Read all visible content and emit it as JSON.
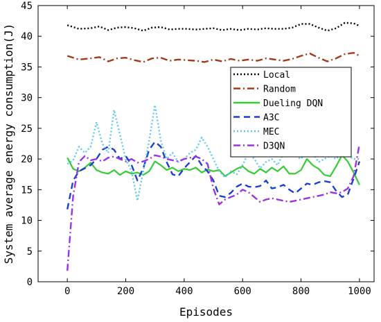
{
  "chart_data": {
    "type": "line",
    "xlabel": "Episodes",
    "ylabel": "System average energy consumption(J)",
    "xlim": [
      -100,
      1050
    ],
    "ylim": [
      0,
      45
    ],
    "xticks": [
      0,
      200,
      400,
      600,
      800,
      1000
    ],
    "yticks": [
      0,
      5,
      10,
      15,
      20,
      25,
      30,
      35,
      40,
      45
    ],
    "grid": false,
    "legend_position": "upper-right",
    "series": [
      {
        "name": "Local",
        "color": "#000000",
        "style": "dotted",
        "x": [
          0,
          40,
          80,
          110,
          140,
          170,
          200,
          230,
          260,
          290,
          320,
          350,
          380,
          410,
          440,
          470,
          500,
          530,
          560,
          590,
          620,
          650,
          680,
          710,
          740,
          770,
          800,
          830,
          860,
          890,
          920,
          950,
          980,
          1000
        ],
        "y": [
          41.8,
          41.2,
          41.3,
          41.6,
          41.0,
          41.4,
          41.5,
          41.3,
          40.9,
          41.4,
          41.5,
          41.1,
          41.2,
          41.2,
          41.1,
          41.2,
          41.3,
          41.0,
          41.2,
          41.0,
          41.2,
          41.1,
          41.3,
          41.2,
          41.2,
          41.4,
          42.0,
          42.0,
          41.4,
          40.9,
          41.3,
          42.2,
          42.1,
          41.7
        ]
      },
      {
        "name": "Random",
        "color": "#a23a1a",
        "style": "dashdot",
        "x": [
          0,
          40,
          80,
          110,
          140,
          170,
          200,
          230,
          260,
          290,
          320,
          350,
          380,
          410,
          440,
          470,
          500,
          530,
          560,
          590,
          620,
          650,
          680,
          710,
          740,
          770,
          800,
          830,
          860,
          890,
          920,
          950,
          980,
          1000
        ],
        "y": [
          36.8,
          36.2,
          36.4,
          36.6,
          35.9,
          36.4,
          36.5,
          36.1,
          35.8,
          36.4,
          36.5,
          36.0,
          36.2,
          36.1,
          36.0,
          35.8,
          36.2,
          35.9,
          36.3,
          36.0,
          36.2,
          36.0,
          36.4,
          36.2,
          36.0,
          36.3,
          36.8,
          37.2,
          36.5,
          35.9,
          36.4,
          37.1,
          37.3,
          36.8
        ]
      },
      {
        "name": "Dueling DQN",
        "color": "#33cc33",
        "style": "solid",
        "x": [
          0,
          20,
          40,
          60,
          80,
          100,
          120,
          140,
          160,
          180,
          200,
          220,
          240,
          260,
          280,
          300,
          320,
          340,
          360,
          380,
          400,
          420,
          440,
          460,
          480,
          500,
          520,
          540,
          560,
          580,
          600,
          620,
          640,
          660,
          680,
          700,
          720,
          740,
          760,
          780,
          800,
          820,
          840,
          860,
          880,
          900,
          920,
          940,
          960,
          980,
          1000
        ],
        "y": [
          20.2,
          18.4,
          18.0,
          18.6,
          19.4,
          18.2,
          17.8,
          17.6,
          18.2,
          17.4,
          18.0,
          17.6,
          17.8,
          17.4,
          18.0,
          19.6,
          19.0,
          18.2,
          18.6,
          18.0,
          18.4,
          18.2,
          18.6,
          17.8,
          18.3,
          18.0,
          18.2,
          17.2,
          17.8,
          18.4,
          18.8,
          18.0,
          17.6,
          18.4,
          17.8,
          18.6,
          18.0,
          18.8,
          17.6,
          17.6,
          18.2,
          20.0,
          19.0,
          18.4,
          17.4,
          17.2,
          18.8,
          20.6,
          19.6,
          17.8,
          15.8
        ]
      },
      {
        "name": "A3C",
        "color": "#1a3fcc",
        "style": "dashed",
        "x": [
          0,
          20,
          40,
          60,
          80,
          100,
          120,
          140,
          160,
          180,
          200,
          220,
          240,
          260,
          280,
          300,
          320,
          340,
          360,
          380,
          400,
          420,
          440,
          460,
          480,
          500,
          520,
          540,
          560,
          580,
          600,
          620,
          640,
          660,
          680,
          700,
          720,
          740,
          760,
          780,
          800,
          820,
          840,
          860,
          880,
          900,
          920,
          940,
          960,
          980,
          1000
        ],
        "y": [
          11.8,
          16.5,
          18.0,
          18.5,
          19.0,
          20.0,
          21.5,
          22.0,
          21.5,
          20.0,
          20.5,
          19.0,
          16.5,
          18.5,
          21.5,
          22.8,
          22.0,
          19.5,
          17.5,
          17.2,
          18.5,
          19.5,
          20.5,
          19.0,
          18.0,
          16.5,
          14.0,
          13.8,
          14.5,
          15.5,
          16.0,
          15.5,
          15.4,
          15.6,
          16.5,
          15.2,
          15.4,
          15.8,
          15.0,
          14.4,
          15.2,
          16.0,
          15.8,
          16.2,
          16.4,
          16.2,
          14.8,
          13.8,
          14.2,
          16.8,
          19.6
        ]
      },
      {
        "name": "MEC",
        "color": "#5cc8f0",
        "style": "dotted",
        "x": [
          0,
          20,
          40,
          60,
          80,
          100,
          120,
          140,
          160,
          180,
          200,
          220,
          240,
          260,
          280,
          300,
          320,
          340,
          360,
          380,
          400,
          420,
          440,
          460,
          480,
          500,
          520,
          540,
          560,
          580,
          600,
          620,
          640,
          660,
          680,
          700,
          720,
          740,
          760,
          780,
          800,
          820,
          840,
          860,
          880,
          900,
          920,
          940,
          960,
          980,
          1000
        ],
        "y": [
          19.2,
          19.8,
          22.0,
          21.0,
          22.0,
          26.0,
          22.5,
          21.0,
          28.0,
          24.0,
          20.0,
          18.0,
          13.2,
          18.0,
          23.0,
          28.8,
          23.0,
          20.0,
          21.0,
          19.5,
          20.0,
          21.0,
          21.5,
          23.5,
          22.0,
          20.0,
          18.0,
          17.0,
          18.0,
          17.5,
          19.0,
          21.0,
          20.0,
          18.5,
          19.5,
          20.0,
          19.0,
          21.0,
          21.5,
          20.5,
          20.0,
          21.5,
          21.0,
          19.5,
          20.0,
          20.5,
          20.0,
          21.0,
          20.5,
          20.0,
          20.0
        ]
      },
      {
        "name": "D3QN",
        "color": "#9a33e0",
        "style": "dashdot",
        "x": [
          0,
          20,
          40,
          60,
          80,
          100,
          120,
          140,
          160,
          180,
          200,
          220,
          240,
          260,
          280,
          300,
          320,
          340,
          360,
          380,
          400,
          420,
          440,
          460,
          480,
          500,
          520,
          540,
          560,
          580,
          600,
          620,
          640,
          660,
          680,
          700,
          720,
          740,
          760,
          780,
          800,
          820,
          840,
          860,
          880,
          900,
          920,
          940,
          960,
          980,
          1000
        ],
        "y": [
          1.8,
          14.0,
          19.5,
          20.5,
          19.8,
          20.0,
          19.6,
          20.2,
          20.4,
          20.0,
          19.6,
          20.0,
          19.4,
          19.6,
          20.0,
          20.6,
          20.4,
          20.0,
          19.8,
          19.6,
          20.0,
          20.2,
          20.4,
          20.0,
          19.2,
          15.2,
          12.6,
          13.4,
          13.8,
          14.2,
          15.0,
          14.6,
          13.8,
          13.0,
          13.4,
          13.6,
          13.4,
          13.2,
          13.0,
          13.2,
          13.4,
          13.6,
          13.8,
          14.0,
          14.2,
          14.6,
          14.4,
          14.6,
          15.2,
          17.2,
          22.4
        ]
      }
    ]
  }
}
